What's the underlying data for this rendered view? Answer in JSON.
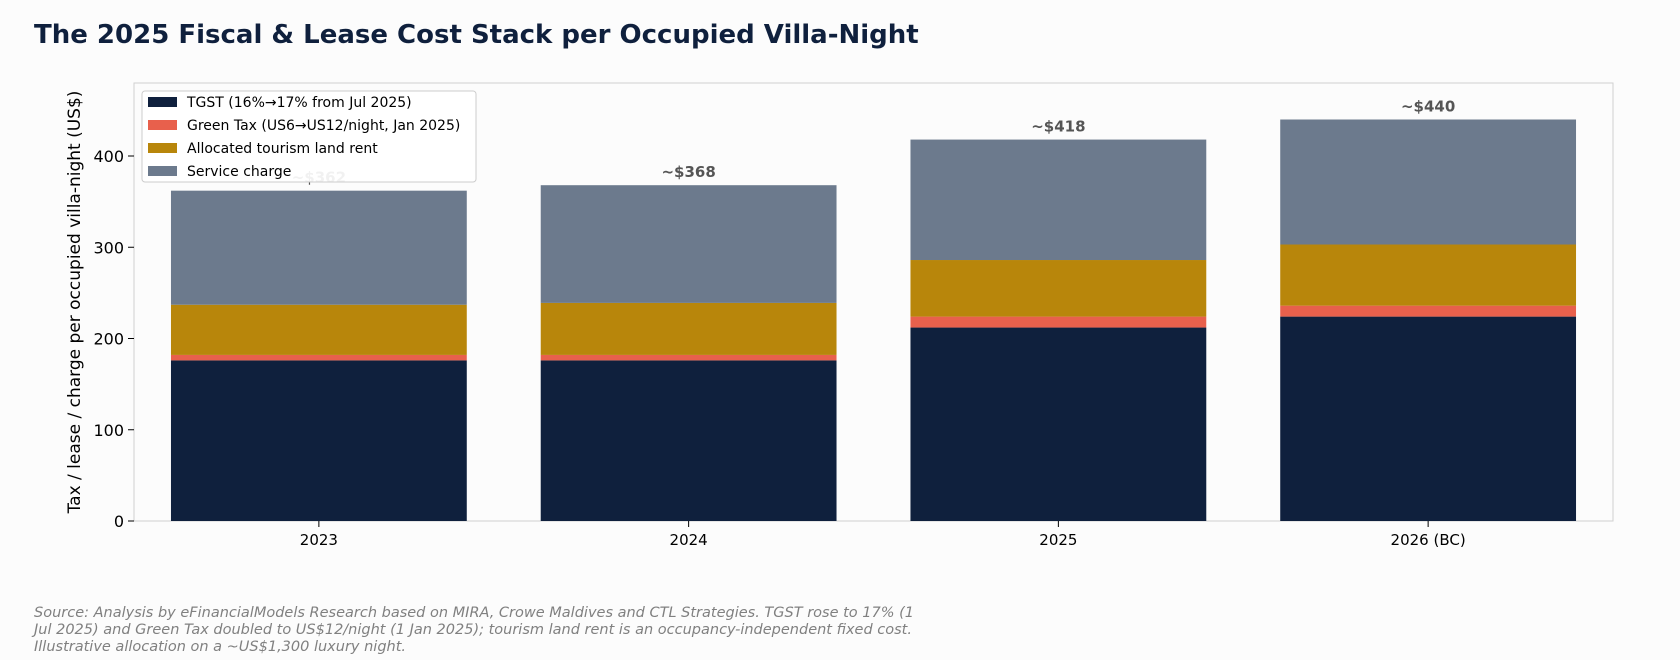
{
  "chart_data": {
    "type": "bar",
    "stacked": true,
    "title": "The 2025 Fiscal & Lease Cost Stack per Occupied Villa-Night",
    "ylabel": "Tax / lease / charge per occupied villa-night (US$)",
    "xlabel": "",
    "categories": [
      "2023",
      "2024",
      "2025",
      "2026 (BC)"
    ],
    "ylim": [
      0,
      480
    ],
    "yticks": [
      0,
      100,
      200,
      300,
      400
    ],
    "grid": false,
    "legend_position": "top-left",
    "series": [
      {
        "name": "TGST (16%→17% from Jul 2025)",
        "color": "#0f203d",
        "values": [
          176,
          176,
          212,
          224
        ]
      },
      {
        "name": "Green Tax (US6→US12/night, Jan 2025)",
        "color": "#e8604c",
        "values": [
          6,
          6,
          12,
          12
        ]
      },
      {
        "name": "Allocated tourism land rent",
        "color": "#b8860b",
        "values": [
          55,
          57,
          62,
          67
        ]
      },
      {
        "name": "Service charge",
        "color": "#6c7a8d",
        "values": [
          125,
          129,
          132,
          137
        ]
      }
    ],
    "total_labels": [
      "~$362",
      "~$368",
      "~$418",
      "~$440"
    ]
  },
  "source_note": "Source: Analysis by eFinancialModels Research based on MIRA, Crowe Maldives and CTL Strategies. TGST rose to 17% (1 Jul 2025) and Green Tax doubled to US$12/night (1 Jan 2025); tourism land rent is an occupancy-independent fixed cost. Illustrative allocation on a ~US$1,300 luxury night."
}
